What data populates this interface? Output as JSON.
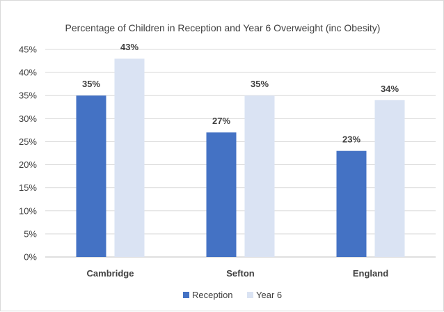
{
  "chart_data": {
    "type": "bar",
    "title": "Percentage of Children in Reception and Year 6 Overweight (inc Obesity)",
    "categories": [
      "Cambridge",
      "Sefton",
      "England"
    ],
    "series": [
      {
        "name": "Reception",
        "values": [
          35,
          27,
          23
        ],
        "labels": [
          "35%",
          "27%",
          "23%"
        ],
        "color": "#4472c4"
      },
      {
        "name": "Year 6",
        "values": [
          43,
          35,
          34
        ],
        "labels": [
          "43%",
          "35%",
          "34%"
        ],
        "color": "#dae3f3"
      }
    ],
    "yticks": [
      {
        "value": 0,
        "label": "0%"
      },
      {
        "value": 5,
        "label": "5%"
      },
      {
        "value": 10,
        "label": "10%"
      },
      {
        "value": 15,
        "label": "15%"
      },
      {
        "value": 20,
        "label": "20%"
      },
      {
        "value": 25,
        "label": "25%"
      },
      {
        "value": 30,
        "label": "30%"
      },
      {
        "value": 35,
        "label": "35%"
      },
      {
        "value": 40,
        "label": "40%"
      },
      {
        "value": 45,
        "label": "45%"
      }
    ],
    "ylim": [
      0,
      45
    ],
    "grid": true,
    "legend_position": "bottom"
  }
}
